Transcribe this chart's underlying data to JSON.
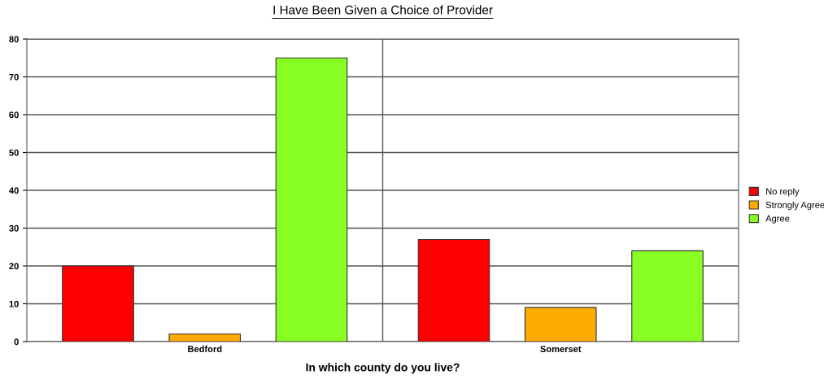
{
  "chart_data": {
    "type": "bar",
    "title": "I Have Been Given a Choice of Provider",
    "xlabel": "In which county do you live?",
    "categories": [
      "Bedford",
      "Somerset"
    ],
    "series": [
      {
        "name": "No reply",
        "color": "#ff0000",
        "values": [
          20,
          27
        ]
      },
      {
        "name": "Strongly Agree",
        "color": "#ffaa00",
        "values": [
          2,
          9
        ]
      },
      {
        "name": "Agree",
        "color": "#88ff22",
        "values": [
          75,
          24
        ]
      }
    ],
    "ylim": [
      0,
      80
    ],
    "yticks": [
      0,
      10,
      20,
      30,
      40,
      50,
      60,
      70,
      80
    ],
    "grid": true,
    "legend": "right"
  }
}
